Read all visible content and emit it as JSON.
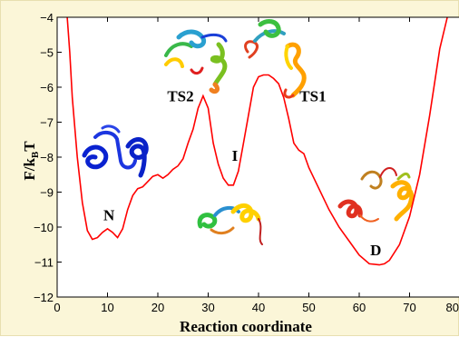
{
  "chart_data": {
    "type": "line",
    "xlabel": "Reaction coordinate",
    "ylabel_main": "F/k",
    "ylabel_sub": "B",
    "ylabel_tail": "T",
    "xlim": [
      0,
      80
    ],
    "ylim": [
      -12,
      -4
    ],
    "xticks": [
      0,
      10,
      20,
      30,
      40,
      50,
      60,
      70,
      80
    ],
    "xtick_labels": [
      "0",
      "10",
      "20",
      "30",
      "40",
      "50",
      "60",
      "70",
      "80"
    ],
    "yticks": [
      -12,
      -11,
      -10,
      -9,
      -8,
      -7,
      -6,
      -5,
      -4
    ],
    "ytick_labels": [
      "−12",
      "−11",
      "−10",
      "−9",
      "−8",
      "−7",
      "−6",
      "−5",
      "−4"
    ],
    "grid": false,
    "line_color": "#ff0000",
    "x": [
      2,
      2.5,
      3,
      4,
      5,
      6,
      7,
      8,
      9,
      10,
      11,
      12,
      13,
      14,
      15,
      16,
      17,
      18,
      19,
      20,
      21,
      22,
      23,
      24,
      25,
      26,
      27,
      28,
      29,
      30,
      31,
      32,
      33,
      34,
      35,
      36,
      37,
      38,
      39,
      40,
      41,
      42,
      43,
      44,
      45,
      46,
      47,
      48,
      49,
      50,
      52,
      54,
      56,
      58,
      60,
      62,
      64,
      65,
      66,
      68,
      70,
      72,
      74,
      76,
      77.5
    ],
    "y": [
      -4.0,
      -5.0,
      -6.3,
      -8.0,
      -9.3,
      -10.1,
      -10.35,
      -10.3,
      -10.15,
      -10.05,
      -10.15,
      -10.3,
      -10.05,
      -9.5,
      -9.1,
      -8.9,
      -8.85,
      -8.7,
      -8.55,
      -8.5,
      -8.6,
      -8.5,
      -8.35,
      -8.25,
      -8.05,
      -7.6,
      -7.2,
      -6.6,
      -6.25,
      -6.6,
      -7.6,
      -8.2,
      -8.6,
      -8.8,
      -8.8,
      -8.4,
      -7.6,
      -6.8,
      -6.0,
      -5.7,
      -5.65,
      -5.65,
      -5.75,
      -5.9,
      -6.3,
      -6.9,
      -7.6,
      -7.8,
      -7.9,
      -8.3,
      -8.9,
      -9.5,
      -10.0,
      -10.4,
      -10.8,
      -11.05,
      -11.08,
      -11.05,
      -10.95,
      -10.5,
      -9.7,
      -8.5,
      -6.8,
      -4.9,
      -4.0
    ],
    "annotations": [
      {
        "text": "N",
        "x": 10.3,
        "y": -9.8
      },
      {
        "text": "TS2",
        "x": 24.5,
        "y": -6.4
      },
      {
        "text": "I",
        "x": 35.3,
        "y": -8.1
      },
      {
        "text": "TS1",
        "x": 50.8,
        "y": -6.4
      },
      {
        "text": "D",
        "x": 63.3,
        "y": -10.8
      }
    ]
  }
}
